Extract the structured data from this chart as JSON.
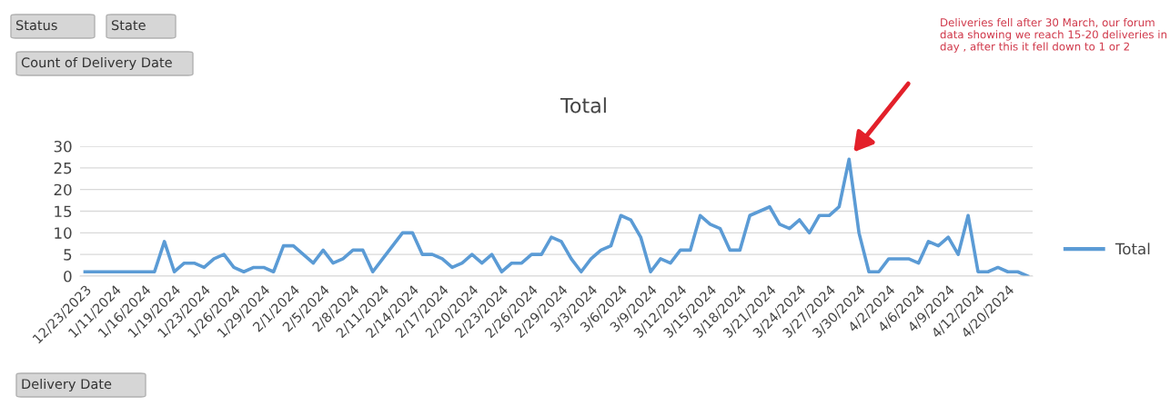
{
  "chart_data": {
    "type": "line",
    "title": "Total",
    "categories": [
      "12/23/2023",
      null,
      null,
      "1/11/2024",
      null,
      null,
      "1/16/2024",
      null,
      null,
      "1/19/2024",
      null,
      null,
      "1/23/2024",
      null,
      null,
      "1/26/2024",
      null,
      null,
      "1/29/2024",
      null,
      null,
      "2/1/2024",
      null,
      null,
      "2/5/2024",
      null,
      null,
      "2/8/2024",
      null,
      null,
      "2/11/2024",
      null,
      null,
      "2/14/2024",
      null,
      null,
      "2/17/2024",
      null,
      null,
      "2/20/2024",
      null,
      null,
      "2/23/2024",
      null,
      null,
      "2/26/2024",
      null,
      null,
      "2/29/2024",
      null,
      null,
      "3/3/2024",
      null,
      null,
      "3/6/2024",
      null,
      null,
      "3/9/2024",
      null,
      null,
      "3/12/2024",
      null,
      null,
      "3/15/2024",
      null,
      null,
      "3/18/2024",
      null,
      null,
      "3/21/2024",
      null,
      null,
      "3/24/2024",
      null,
      null,
      "3/27/2024",
      null,
      null,
      "3/30/2024",
      null,
      null,
      "4/2/2024",
      null,
      null,
      "4/6/2024",
      null,
      null,
      "4/9/2024",
      null,
      null,
      "4/12/2024",
      null,
      null,
      "4/20/2024",
      null,
      null
    ],
    "series": [
      {
        "name": "Total",
        "color": "#5b9bd5",
        "values": [
          1,
          1,
          1,
          1,
          1,
          1,
          1,
          1,
          8,
          1,
          3,
          3,
          2,
          4,
          5,
          2,
          1,
          2,
          2,
          1,
          7,
          7,
          5,
          3,
          6,
          3,
          4,
          6,
          6,
          1,
          4,
          7,
          10,
          10,
          5,
          5,
          4,
          2,
          3,
          5,
          3,
          5,
          1,
          3,
          3,
          5,
          5,
          9,
          8,
          4,
          1,
          4,
          6,
          7,
          14,
          13,
          9,
          1,
          4,
          3,
          6,
          6,
          14,
          12,
          11,
          6,
          6,
          14,
          15,
          16,
          12,
          11,
          13,
          10,
          14,
          14,
          16,
          27,
          10,
          1,
          1,
          4,
          4,
          4,
          3,
          8,
          7,
          9,
          5,
          14,
          1,
          1,
          2,
          1,
          1,
          0
        ]
      }
    ],
    "ylim": [
      0,
      30
    ],
    "yticks": [
      0,
      5,
      10,
      15,
      20,
      25,
      30
    ],
    "grid": "y",
    "legend": "right",
    "marker": "none",
    "line_style": "solid",
    "annotations": [
      "Status",
      "State",
      "Count of Delivery Date",
      "Delivery Date",
      "Deliveries fell after 30 March, our forum data showing we reach 15-20 deliveries in day , after this it fell down to 1 or 2"
    ]
  }
}
